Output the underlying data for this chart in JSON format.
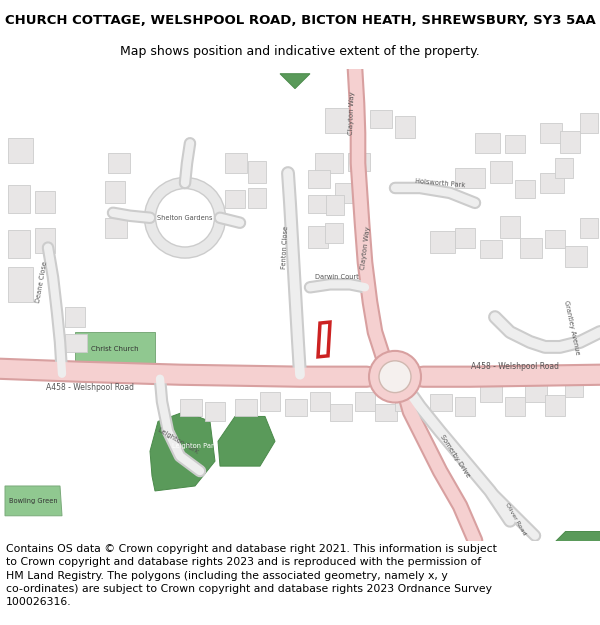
{
  "title_line1": "CHURCH COTTAGE, WELSHPOOL ROAD, BICTON HEATH, SHREWSBURY, SY3 5AA",
  "title_line2": "Map shows position and indicative extent of the property.",
  "footer_text": "Contains OS data © Crown copyright and database right 2021. This information is subject\nto Crown copyright and database rights 2023 and is reproduced with the permission of\nHM Land Registry. The polygons (including the associated geometry, namely x, y\nco-ordinates) are subject to Crown copyright and database rights 2023 Ordnance Survey\n100026316.",
  "map_bg": "#ffffff",
  "road_color": "#f5d0d0",
  "road_border": "#d8a0a0",
  "building_fill": "#e8e6e6",
  "building_edge": "#cccccc",
  "green_dark": "#5a9a5a",
  "green_light": "#90c890",
  "plot_red": "#cc2222",
  "white": "#ffffff",
  "title_fontsize": 9.5,
  "subtitle_fontsize": 9,
  "footer_fontsize": 7.8,
  "label_fontsize": 5.5,
  "small_label_fontsize": 5.0
}
